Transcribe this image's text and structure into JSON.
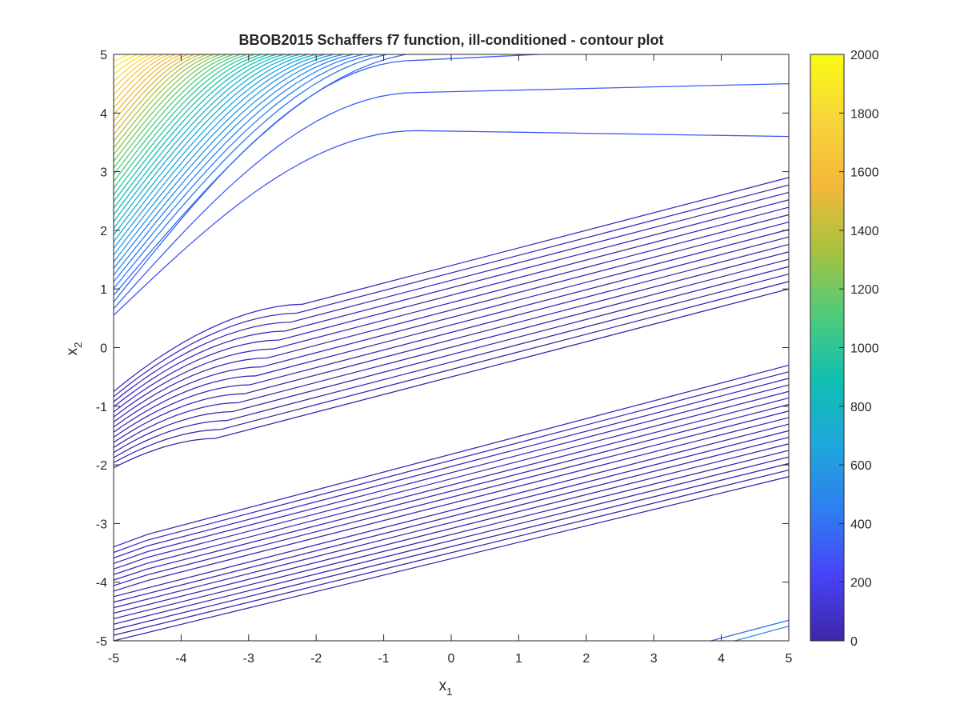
{
  "chart_data": {
    "type": "contour",
    "title": "BBOB2015 Schaffers f7 function, ill-conditioned - contour plot",
    "xlabel": {
      "base": "x",
      "sub": "1"
    },
    "ylabel": {
      "base": "x",
      "sub": "2"
    },
    "xlim": [
      -5,
      5
    ],
    "ylim": [
      -5,
      5
    ],
    "xticks": [
      "-5",
      "-4",
      "-3",
      "-2",
      "-1",
      "0",
      "1",
      "2",
      "3",
      "4",
      "5"
    ],
    "yticks": [
      "-5",
      "-4",
      "-3",
      "-2",
      "-1",
      "0",
      "1",
      "2",
      "3",
      "4",
      "5"
    ],
    "colorbar": {
      "range": [
        0,
        2000
      ],
      "ticks": [
        "0",
        "200",
        "400",
        "600",
        "800",
        "1000",
        "1200",
        "1400",
        "1600",
        "1800",
        "2000"
      ],
      "colormap": [
        "#3e26a8",
        "#4743f8",
        "#2f7ef0",
        "#1fa7db",
        "#10bfb1",
        "#4fcb7a",
        "#a8c23e",
        "#f5b83a",
        "#f8d53a",
        "#f9fb15"
      ]
    },
    "contour_groups": [
      {
        "label": "lower band (low values)",
        "level_range": [
          0,
          60
        ],
        "line_count": 18,
        "left_edge_y": [
          -5.0,
          -3.4
        ],
        "right_edge_y": [
          -2.2,
          -0.3
        ]
      },
      {
        "label": "middle band (low values)",
        "level_range": [
          0,
          60
        ],
        "line_count": 16,
        "left_edge_y": [
          -2.05,
          -0.75
        ],
        "right_edge_y": [
          1.0,
          2.9
        ]
      },
      {
        "label": "upper-left fan (increasing values)",
        "level_range": [
          300,
          2000
        ],
        "line_count": 40,
        "left_edge_y": [
          0.55,
          5.0
        ]
      },
      {
        "label": "bottom-right corner",
        "level_range": [
          400,
          500
        ],
        "line_count": 2,
        "points": [
          [
            3.85,
            -5.0
          ],
          [
            5.0,
            -4.65
          ]
        ]
      }
    ]
  }
}
